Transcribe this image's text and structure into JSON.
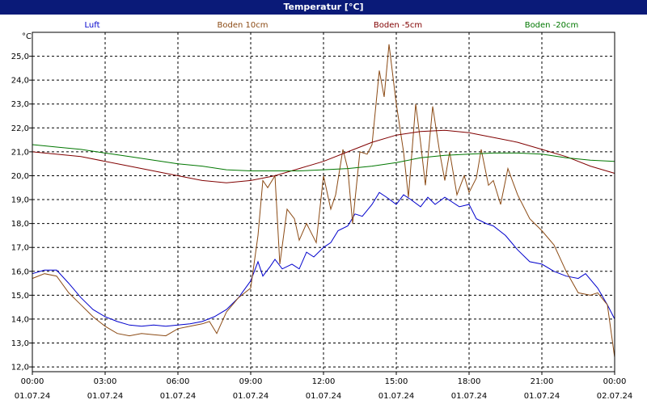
{
  "window": {
    "title": "Temperatur [°C]"
  },
  "chart_data": {
    "type": "line",
    "title": "Temperatur [°C]",
    "ylabel": "°C",
    "ylim": [
      11.8,
      26.0
    ],
    "xlim": [
      0,
      24
    ],
    "y_ticks": [
      "12,0",
      "13,0",
      "14,0",
      "15,0",
      "16,0",
      "17,0",
      "18,0",
      "19,0",
      "20,0",
      "21,0",
      "22,0",
      "23,0",
      "24,0",
      "25,0"
    ],
    "x_ticks": [
      {
        "time": "00:00",
        "date": "01.07.24"
      },
      {
        "time": "03:00",
        "date": "01.07.24"
      },
      {
        "time": "06:00",
        "date": "01.07.24"
      },
      {
        "time": "09:00",
        "date": "01.07.24"
      },
      {
        "time": "12:00",
        "date": "01.07.24"
      },
      {
        "time": "15:00",
        "date": "01.07.24"
      },
      {
        "time": "18:00",
        "date": "01.07.24"
      },
      {
        "time": "21:00",
        "date": "01.07.24"
      },
      {
        "time": "00:00",
        "date": "02.07.24"
      }
    ],
    "grid": true,
    "legend_position": "top",
    "series": [
      {
        "name": "Luft",
        "color": "#0000cc",
        "points": [
          [
            0,
            15.9
          ],
          [
            0.5,
            16.05
          ],
          [
            1,
            16.05
          ],
          [
            1.5,
            15.5
          ],
          [
            2,
            14.9
          ],
          [
            2.5,
            14.4
          ],
          [
            3,
            14.1
          ],
          [
            3.5,
            13.9
          ],
          [
            4,
            13.75
          ],
          [
            4.5,
            13.7
          ],
          [
            5,
            13.75
          ],
          [
            5.5,
            13.7
          ],
          [
            6,
            13.75
          ],
          [
            6.5,
            13.8
          ],
          [
            7,
            13.9
          ],
          [
            7.5,
            14.1
          ],
          [
            8,
            14.4
          ],
          [
            8.5,
            14.9
          ],
          [
            9,
            15.6
          ],
          [
            9.3,
            16.4
          ],
          [
            9.5,
            15.8
          ],
          [
            9.8,
            16.2
          ],
          [
            10,
            16.5
          ],
          [
            10.3,
            16.1
          ],
          [
            10.7,
            16.3
          ],
          [
            11,
            16.1
          ],
          [
            11.3,
            16.8
          ],
          [
            11.6,
            16.6
          ],
          [
            12,
            17.0
          ],
          [
            12.3,
            17.2
          ],
          [
            12.6,
            17.7
          ],
          [
            13,
            17.9
          ],
          [
            13.3,
            18.4
          ],
          [
            13.6,
            18.3
          ],
          [
            14,
            18.8
          ],
          [
            14.3,
            19.3
          ],
          [
            14.6,
            19.1
          ],
          [
            15,
            18.8
          ],
          [
            15.3,
            19.2
          ],
          [
            15.6,
            19.0
          ],
          [
            16,
            18.7
          ],
          [
            16.3,
            19.1
          ],
          [
            16.6,
            18.8
          ],
          [
            17,
            19.1
          ],
          [
            17.3,
            18.9
          ],
          [
            17.6,
            18.7
          ],
          [
            18,
            18.8
          ],
          [
            18.3,
            18.2
          ],
          [
            18.7,
            18.0
          ],
          [
            19,
            17.9
          ],
          [
            19.5,
            17.5
          ],
          [
            20,
            16.9
          ],
          [
            20.5,
            16.4
          ],
          [
            21,
            16.3
          ],
          [
            21.5,
            16.0
          ],
          [
            22,
            15.8
          ],
          [
            22.5,
            15.7
          ],
          [
            22.8,
            15.9
          ],
          [
            23.3,
            15.3
          ],
          [
            23.7,
            14.6
          ],
          [
            24,
            14.0
          ]
        ]
      },
      {
        "name": "Boden 10cm",
        "color": "#8b4a14",
        "points": [
          [
            0,
            15.7
          ],
          [
            0.5,
            15.9
          ],
          [
            1,
            15.8
          ],
          [
            1.5,
            15.1
          ],
          [
            2,
            14.6
          ],
          [
            2.5,
            14.1
          ],
          [
            3,
            13.7
          ],
          [
            3.5,
            13.4
          ],
          [
            4,
            13.3
          ],
          [
            4.5,
            13.4
          ],
          [
            5,
            13.35
          ],
          [
            5.5,
            13.3
          ],
          [
            6,
            13.6
          ],
          [
            6.5,
            13.7
          ],
          [
            7,
            13.8
          ],
          [
            7.3,
            13.9
          ],
          [
            7.6,
            13.4
          ],
          [
            8,
            14.3
          ],
          [
            8.5,
            14.9
          ],
          [
            9,
            15.3
          ],
          [
            9.3,
            17.5
          ],
          [
            9.5,
            19.8
          ],
          [
            9.7,
            19.5
          ],
          [
            10,
            20.0
          ],
          [
            10.2,
            16.3
          ],
          [
            10.5,
            18.6
          ],
          [
            10.8,
            18.2
          ],
          [
            11,
            17.3
          ],
          [
            11.3,
            18.0
          ],
          [
            11.7,
            17.2
          ],
          [
            12,
            20.0
          ],
          [
            12.3,
            18.6
          ],
          [
            12.5,
            19.2
          ],
          [
            12.8,
            21.1
          ],
          [
            13,
            20.3
          ],
          [
            13.2,
            18.0
          ],
          [
            13.5,
            21.0
          ],
          [
            13.8,
            20.9
          ],
          [
            14,
            21.3
          ],
          [
            14.3,
            24.4
          ],
          [
            14.5,
            23.3
          ],
          [
            14.7,
            25.5
          ],
          [
            15,
            23.0
          ],
          [
            15.3,
            21.0
          ],
          [
            15.5,
            19.1
          ],
          [
            15.8,
            23.0
          ],
          [
            16,
            21.4
          ],
          [
            16.2,
            19.6
          ],
          [
            16.5,
            22.9
          ],
          [
            16.8,
            20.9
          ],
          [
            17,
            19.8
          ],
          [
            17.2,
            21.0
          ],
          [
            17.5,
            19.2
          ],
          [
            17.8,
            20.0
          ],
          [
            18,
            19.3
          ],
          [
            18.3,
            19.9
          ],
          [
            18.5,
            21.1
          ],
          [
            18.8,
            19.6
          ],
          [
            19,
            19.8
          ],
          [
            19.3,
            18.8
          ],
          [
            19.6,
            20.3
          ],
          [
            20,
            19.2
          ],
          [
            20.5,
            18.2
          ],
          [
            21,
            17.7
          ],
          [
            21.5,
            17.1
          ],
          [
            22,
            16.0
          ],
          [
            22.5,
            15.1
          ],
          [
            23,
            15.0
          ],
          [
            23.3,
            15.1
          ],
          [
            23.7,
            14.6
          ],
          [
            24,
            12.4
          ]
        ]
      },
      {
        "name": "Boden -5cm",
        "color": "#800000",
        "points": [
          [
            0,
            21.0
          ],
          [
            2,
            20.8
          ],
          [
            4,
            20.4
          ],
          [
            6,
            20.0
          ],
          [
            7,
            19.8
          ],
          [
            8,
            19.7
          ],
          [
            9,
            19.8
          ],
          [
            10,
            20.0
          ],
          [
            11,
            20.3
          ],
          [
            12,
            20.6
          ],
          [
            13,
            21.0
          ],
          [
            14,
            21.4
          ],
          [
            15,
            21.7
          ],
          [
            16,
            21.85
          ],
          [
            17,
            21.9
          ],
          [
            18,
            21.8
          ],
          [
            19,
            21.6
          ],
          [
            20,
            21.4
          ],
          [
            21,
            21.1
          ],
          [
            22,
            20.8
          ],
          [
            23,
            20.4
          ],
          [
            24,
            20.1
          ]
        ]
      },
      {
        "name": "Boden -20cm",
        "color": "#007700",
        "points": [
          [
            0,
            21.3
          ],
          [
            1,
            21.2
          ],
          [
            2,
            21.1
          ],
          [
            3,
            20.95
          ],
          [
            4,
            20.8
          ],
          [
            5,
            20.65
          ],
          [
            6,
            20.5
          ],
          [
            7,
            20.4
          ],
          [
            8,
            20.25
          ],
          [
            9,
            20.2
          ],
          [
            10,
            20.2
          ],
          [
            11,
            20.2
          ],
          [
            12,
            20.25
          ],
          [
            13,
            20.3
          ],
          [
            14,
            20.4
          ],
          [
            15,
            20.55
          ],
          [
            16,
            20.75
          ],
          [
            17,
            20.85
          ],
          [
            18,
            20.9
          ],
          [
            19,
            20.95
          ],
          [
            20,
            20.95
          ],
          [
            21,
            20.9
          ],
          [
            22,
            20.75
          ],
          [
            23,
            20.65
          ],
          [
            24,
            20.6
          ]
        ]
      }
    ]
  }
}
